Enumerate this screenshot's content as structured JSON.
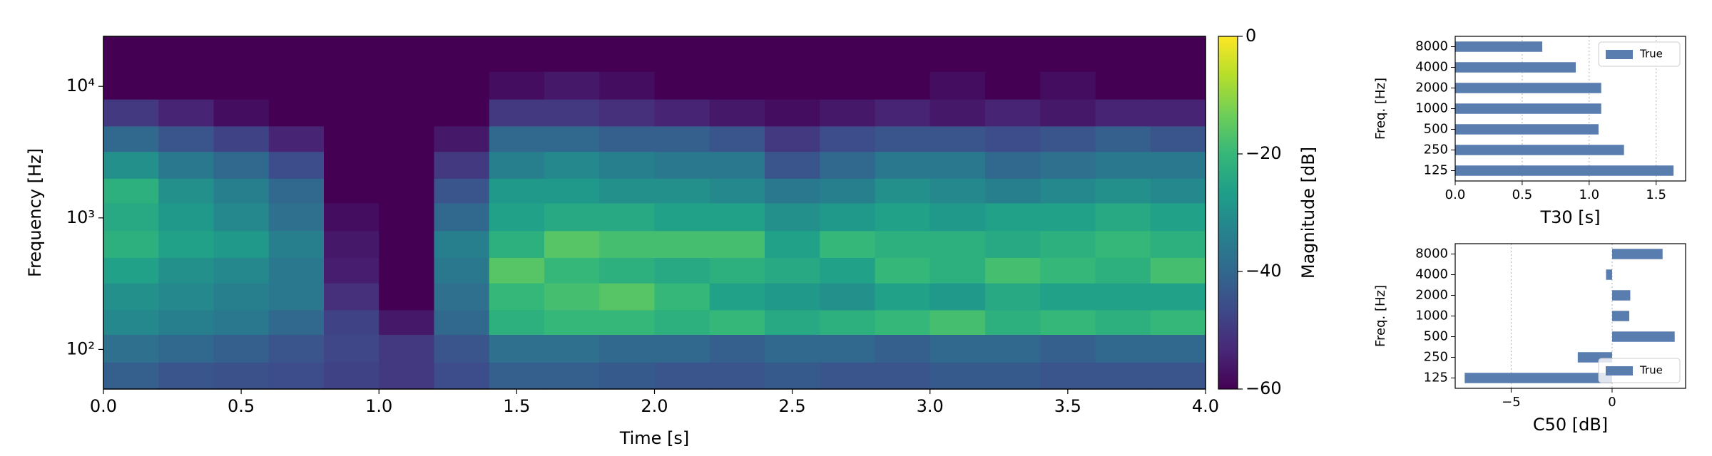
{
  "chart_data": [
    {
      "type": "heatmap",
      "xlabel": "Time [s]",
      "ylabel": "Frequency [Hz]",
      "yscale": "log",
      "xlim": [
        0,
        4
      ],
      "ylim": [
        50,
        24000
      ],
      "xticks": [
        {
          "value": 0,
          "label": "0.0"
        },
        0.5,
        {
          "value": 1,
          "label": "1.0"
        },
        1.5,
        {
          "value": 2,
          "label": "2.0"
        },
        2.5,
        {
          "value": 3,
          "label": "3.0"
        },
        3.5,
        {
          "value": 4,
          "label": "4.0"
        }
      ],
      "yticks": [
        {
          "value": 100,
          "label": "10²"
        },
        {
          "value": 1000,
          "label": "10³"
        },
        {
          "value": 10000,
          "label": "10⁴"
        }
      ],
      "time_bins": [
        0,
        0.2,
        0.4,
        0.6,
        0.8,
        1,
        1.2,
        1.4,
        1.6,
        1.8,
        2,
        2.2,
        2.4,
        2.6,
        2.8,
        3,
        3.2,
        3.4,
        3.6,
        3.8,
        4
      ],
      "freq_bins": [
        50,
        80,
        130,
        200,
        320,
        500,
        800,
        1300,
        2000,
        3200,
        5000,
        8000,
        13000,
        24000
      ],
      "values": [
        [
          -42,
          -44,
          -45,
          -46,
          -48,
          -50,
          -46,
          -42,
          -42,
          -43,
          -44,
          -44,
          -43,
          -44,
          -44,
          -43,
          -43,
          -44,
          -44,
          -44
        ],
        [
          -38,
          -40,
          -42,
          -44,
          -47,
          -50,
          -44,
          -38,
          -38,
          -40,
          -40,
          -42,
          -40,
          -40,
          -42,
          -40,
          -40,
          -42,
          -40,
          -40
        ],
        [
          -32,
          -34,
          -36,
          -40,
          -48,
          -56,
          -40,
          -22,
          -20,
          -20,
          -22,
          -20,
          -24,
          -22,
          -20,
          -18,
          -22,
          -20,
          -22,
          -20
        ],
        [
          -30,
          -32,
          -34,
          -36,
          -52,
          -60,
          -38,
          -20,
          -18,
          -16,
          -20,
          -26,
          -28,
          -30,
          -26,
          -28,
          -24,
          -26,
          -26,
          -26
        ],
        [
          -26,
          -30,
          -32,
          -36,
          -55,
          -60,
          -36,
          -16,
          -20,
          -22,
          -24,
          -22,
          -24,
          -26,
          -20,
          -22,
          -18,
          -20,
          -22,
          -18
        ],
        [
          -22,
          -26,
          -28,
          -34,
          -56,
          -60,
          -34,
          -22,
          -16,
          -18,
          -18,
          -18,
          -26,
          -20,
          -22,
          -22,
          -24,
          -22,
          -20,
          -22
        ],
        [
          -24,
          -28,
          -32,
          -38,
          -58,
          -60,
          -40,
          -26,
          -24,
          -24,
          -26,
          -26,
          -30,
          -28,
          -26,
          -28,
          -26,
          -26,
          -24,
          -26
        ],
        [
          -22,
          -30,
          -34,
          -40,
          -60,
          -60,
          -44,
          -28,
          -28,
          -30,
          -30,
          -32,
          -36,
          -34,
          -30,
          -32,
          -34,
          -32,
          -30,
          -32
        ],
        [
          -30,
          -36,
          -40,
          -46,
          -60,
          -60,
          -50,
          -34,
          -32,
          -34,
          -36,
          -36,
          -44,
          -40,
          -36,
          -36,
          -40,
          -38,
          -36,
          -36
        ],
        [
          -40,
          -44,
          -48,
          -54,
          -60,
          -60,
          -56,
          -40,
          -40,
          -42,
          -42,
          -44,
          -50,
          -46,
          -44,
          -44,
          -46,
          -44,
          -42,
          -44
        ],
        [
          -50,
          -54,
          -58,
          -60,
          -60,
          -60,
          -60,
          -50,
          -50,
          -52,
          -54,
          -56,
          -58,
          -56,
          -54,
          -56,
          -54,
          -56,
          -54,
          -54
        ],
        [
          -60,
          -60,
          -60,
          -60,
          -60,
          -60,
          -60,
          -58,
          -56,
          -58,
          -60,
          -60,
          -60,
          -60,
          -60,
          -58,
          -60,
          -58,
          -60,
          -60
        ],
        [
          -60,
          -60,
          -60,
          -60,
          -60,
          -60,
          -60,
          -60,
          -60,
          -60,
          -60,
          -60,
          -60,
          -60,
          -60,
          -60,
          -60,
          -60,
          -60,
          -60
        ]
      ],
      "colorbar_label": "Magnitude [dB]",
      "clim": [
        -60,
        0
      ],
      "colorbar_ticks": [
        {
          "value": 0,
          "label": "0"
        },
        {
          "value": -20,
          "label": "−20"
        },
        {
          "value": -40,
          "label": "−40"
        },
        {
          "value": -60,
          "label": "−60"
        }
      ],
      "colormap": [
        "#440154",
        "#482878",
        "#3e4989",
        "#31688e",
        "#26828e",
        "#1f9e89",
        "#35b779",
        "#6ece58",
        "#b5de2b",
        "#fde725"
      ]
    },
    {
      "type": "barh",
      "xlabel": "T30 [s]",
      "ylabel": "Freq. [Hz]",
      "categories": [
        "125",
        "250",
        "500",
        "1000",
        "2000",
        "4000",
        "8000"
      ],
      "series": [
        {
          "name": "True",
          "color": "#5a7db0",
          "values": [
            1.63,
            1.26,
            1.07,
            1.09,
            1.09,
            0.9,
            0.65
          ]
        }
      ],
      "xlim": [
        0,
        1.72
      ],
      "xticks": [
        {
          "value": 0,
          "label": "0.0"
        },
        0.5,
        {
          "value": 1,
          "label": "1.0"
        },
        1.5
      ],
      "grid": true,
      "legend": "upper right"
    },
    {
      "type": "barh",
      "xlabel": "C50 [dB]",
      "ylabel": "Freq. [Hz]",
      "categories": [
        "125",
        "250",
        "500",
        "1000",
        "2000",
        "4000",
        "8000"
      ],
      "series": [
        {
          "name": "True",
          "color": "#5a7db0",
          "values": [
            -7.3,
            -1.7,
            3.1,
            0.85,
            0.9,
            -0.3,
            2.5
          ]
        }
      ],
      "xlim": [
        -7.77,
        3.64
      ],
      "xticks": [
        {
          "value": -5,
          "label": "−5"
        },
        0
      ],
      "grid": true,
      "legend": "lower right"
    }
  ]
}
